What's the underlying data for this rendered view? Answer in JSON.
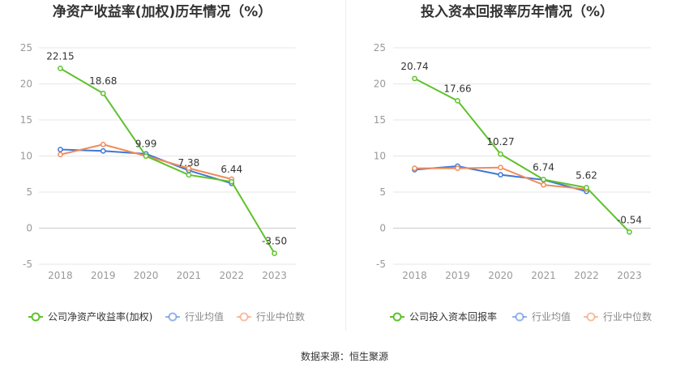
{
  "charts": [
    {
      "type": "line",
      "title": "净资产收益率(加权)历年情况（%）",
      "categories": [
        "2018",
        "2019",
        "2020",
        "2021",
        "2022",
        "2023"
      ],
      "ylim": [
        -5,
        25
      ],
      "yticks": [
        -5,
        0,
        5,
        10,
        15,
        20,
        25
      ],
      "grid": true,
      "legend_position": "bottom",
      "series": [
        {
          "name": "公司净资产收益率(加权)",
          "color": "#5ec22b",
          "values": [
            22.15,
            18.68,
            9.99,
            7.38,
            6.44,
            -3.5
          ],
          "labels": [
            "22.15",
            "18.68",
            "9.99",
            "7.38",
            "6.44",
            "-3.50"
          ]
        },
        {
          "name": "行业均值",
          "color": "#3f78d8",
          "values": [
            10.9,
            10.7,
            10.3,
            8.0,
            6.2,
            null
          ]
        },
        {
          "name": "行业中位数",
          "color": "#f08c5a",
          "values": [
            10.2,
            11.6,
            10.0,
            8.3,
            6.8,
            null
          ]
        }
      ]
    },
    {
      "type": "line",
      "title": "投入资本回报率历年情况（%）",
      "categories": [
        "2018",
        "2019",
        "2020",
        "2021",
        "2022",
        "2023"
      ],
      "ylim": [
        -5,
        25
      ],
      "yticks": [
        -5,
        0,
        5,
        10,
        15,
        20,
        25
      ],
      "grid": true,
      "legend_position": "bottom",
      "series": [
        {
          "name": "公司投入资本回报率",
          "color": "#5ec22b",
          "values": [
            20.74,
            17.66,
            10.27,
            6.74,
            5.62,
            -0.54
          ],
          "labels": [
            "20.74",
            "17.66",
            "10.27",
            "6.74",
            "5.62",
            "-0.54"
          ]
        },
        {
          "name": "行业均值",
          "color": "#3f78d8",
          "values": [
            8.1,
            8.6,
            7.4,
            6.7,
            5.1,
            null
          ]
        },
        {
          "name": "行业中位数",
          "color": "#f08c5a",
          "values": [
            8.3,
            8.3,
            8.4,
            6.0,
            5.4,
            null
          ]
        }
      ]
    }
  ],
  "source_text": "数据来源：恒生聚源",
  "chart_data": [
    {
      "type": "line",
      "title": "净资产收益率(加权)历年情况（%）",
      "categories": [
        "2018",
        "2019",
        "2020",
        "2021",
        "2022",
        "2023"
      ],
      "ylim": [
        -5,
        25
      ],
      "series": [
        {
          "name": "公司净资产收益率(加权)",
          "values": [
            22.15,
            18.68,
            9.99,
            7.38,
            6.44,
            -3.5
          ]
        },
        {
          "name": "行业均值",
          "values": [
            10.9,
            10.7,
            10.3,
            8.0,
            6.2,
            null
          ]
        },
        {
          "name": "行业中位数",
          "values": [
            10.2,
            11.6,
            10.0,
            8.3,
            6.8,
            null
          ]
        }
      ]
    },
    {
      "type": "line",
      "title": "投入资本回报率历年情况（%）",
      "categories": [
        "2018",
        "2019",
        "2020",
        "2021",
        "2022",
        "2023"
      ],
      "ylim": [
        -5,
        25
      ],
      "series": [
        {
          "name": "公司投入资本回报率",
          "values": [
            20.74,
            17.66,
            10.27,
            6.74,
            5.62,
            -0.54
          ]
        },
        {
          "name": "行业均值",
          "values": [
            8.1,
            8.6,
            7.4,
            6.7,
            5.1,
            null
          ]
        },
        {
          "name": "行业中位数",
          "values": [
            8.3,
            8.3,
            8.4,
            6.0,
            5.4,
            null
          ]
        }
      ]
    }
  ]
}
